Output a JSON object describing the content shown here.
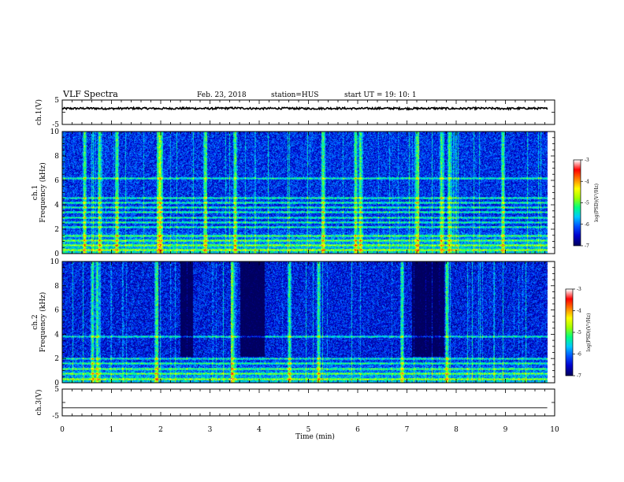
{
  "header": {
    "title": "VLF Spectra",
    "date": "Feb. 23, 2018",
    "station": "station=HUS",
    "start_time": "start  UT =   19: 10: 1"
  },
  "chart_data": [
    {
      "type": "line",
      "id": "waveform-ch1",
      "ylabel": "ch.1(V)",
      "ylim": [
        -5,
        5
      ],
      "yticks": [
        "5",
        "-5"
      ],
      "xlim": [
        0,
        10
      ],
      "x": [
        0,
        0.5,
        1,
        1.5,
        2,
        2.5,
        3,
        3.5,
        4,
        4.5,
        5,
        5.5,
        6,
        6.5,
        7,
        7.5,
        8,
        8.5,
        9,
        9.5,
        9.85
      ],
      "y": [
        1.5,
        1.6,
        1.5,
        1.6,
        1.5,
        1.6,
        1.5,
        1.7,
        1.5,
        1.6,
        1.5,
        1.6,
        1.5,
        1.6,
        1.5,
        1.6,
        1.5,
        1.6,
        1.5,
        1.6,
        1.5
      ],
      "noise_amplitude": 0.4
    },
    {
      "type": "heatmap",
      "id": "spectrogram-ch1",
      "ylabel": "ch.1\nFrequency (kHz)",
      "ylabel_lines": [
        "ch.1",
        "Frequency (kHz)"
      ],
      "ylim": [
        0,
        10
      ],
      "yticks": [
        "0",
        "2",
        "4",
        "6",
        "8",
        "10"
      ],
      "xlim": [
        0,
        10
      ],
      "data_end_min": 9.85,
      "colorbar": {
        "range": [
          -7,
          -3
        ],
        "ticks": [
          "-3",
          "-4",
          "-5",
          "-6",
          "-7"
        ],
        "label": "log(PSD)(V²/Hz)"
      },
      "background_level": -6.3,
      "bright_columns_min": [
        0.45,
        0.75,
        1.1,
        1.95,
        2.0,
        2.9,
        3.5,
        5.3,
        5.95,
        6.05,
        7.2,
        7.7,
        7.85,
        8.95
      ],
      "bright_bands_khz": [
        0.3,
        0.7,
        1.1,
        1.5,
        2.2,
        2.6,
        3.0,
        3.4,
        3.8,
        4.2,
        4.6,
        6.2
      ]
    },
    {
      "type": "heatmap",
      "id": "spectrogram-ch2",
      "ylabel": "ch.2\nFrequency (kHz)",
      "ylabel_lines": [
        "ch.2",
        "Frequency (kHz)"
      ],
      "ylim": [
        0,
        10
      ],
      "yticks": [
        "0",
        "2",
        "4",
        "6",
        "8",
        "10"
      ],
      "xlim": [
        0,
        10
      ],
      "data_end_min": 9.85,
      "colorbar": {
        "range": [
          -7,
          -3
        ],
        "ticks": [
          "-3",
          "-4",
          "-5",
          "-6",
          "-7"
        ],
        "label": "log(PSD)(V²/Hz)"
      },
      "background_level": -6.4,
      "bright_columns_min": [
        0.6,
        0.7,
        1.9,
        3.45,
        4.6,
        5.2,
        6.9,
        7.8
      ],
      "dark_regions_min": [
        [
          2.4,
          2.65
        ],
        [
          3.6,
          4.1
        ],
        [
          7.1,
          7.75
        ]
      ],
      "bright_bands_khz": [
        0.3,
        0.8,
        1.2,
        1.6,
        2.0,
        3.8
      ]
    },
    {
      "type": "line",
      "id": "waveform-ch3",
      "ylabel": "ch.3(V)",
      "ylim": [
        -5,
        5
      ],
      "yticks": [
        "5",
        "-5"
      ],
      "xlim": [
        0,
        10
      ],
      "x": [
        0,
        9.85
      ],
      "y": [
        -2,
        -2
      ],
      "noise_amplitude": 0
    }
  ],
  "x_axis": {
    "label": "Time (min)",
    "ticks": [
      "0",
      "1",
      "2",
      "3",
      "4",
      "5",
      "6",
      "7",
      "8",
      "9",
      "10"
    ],
    "range": [
      0,
      10
    ]
  },
  "colors": {
    "colormap": [
      "#000060",
      "#0000cc",
      "#0050ff",
      "#00c8ff",
      "#00ff80",
      "#a0ff00",
      "#ffff00",
      "#ff8000",
      "#ff0000",
      "#ffffff"
    ]
  }
}
